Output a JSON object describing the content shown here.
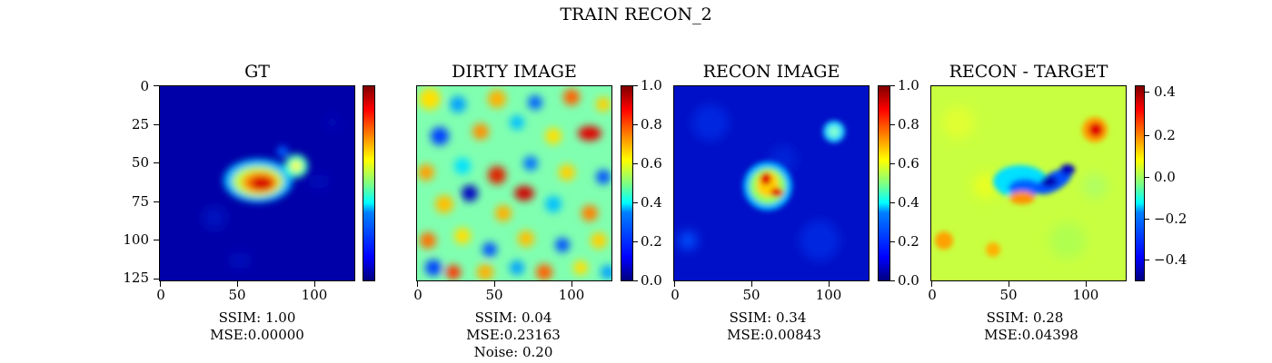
{
  "figure": {
    "suptitle": "TRAIN RECON_2"
  },
  "colors": {
    "colormap": "jet",
    "background": "#ffffff",
    "axes": "#000000"
  },
  "chart_data": [
    {
      "type": "heatmap",
      "title": "GT",
      "x_ticks": [
        "0",
        "50",
        "100"
      ],
      "y_ticks": [
        "0",
        "25",
        "50",
        "75",
        "100",
        "125"
      ],
      "xlim": [
        0,
        127
      ],
      "ylim": [
        127,
        0
      ],
      "colorbar": {
        "ticks": [],
        "range": [
          0,
          1
        ]
      },
      "caption": [
        "SSIM: 1.00",
        "MSE:0.00000"
      ],
      "metrics": {
        "ssim": 1.0,
        "mse": 0.0
      }
    },
    {
      "type": "heatmap",
      "title": "DIRTY IMAGE",
      "x_ticks": [
        "0",
        "50",
        "100"
      ],
      "xlim": [
        0,
        127
      ],
      "ylim": [
        127,
        0
      ],
      "colorbar": {
        "ticks": [
          "0.0",
          "0.2",
          "0.4",
          "0.6",
          "0.8",
          "1.0"
        ],
        "range": [
          0,
          1
        ]
      },
      "caption": [
        "SSIM: 0.04",
        "MSE:0.23163",
        "Noise: 0.20"
      ],
      "metrics": {
        "ssim": 0.04,
        "mse": 0.23163,
        "noise": 0.2
      }
    },
    {
      "type": "heatmap",
      "title": "RECON IMAGE",
      "x_ticks": [
        "0",
        "50",
        "100"
      ],
      "xlim": [
        0,
        127
      ],
      "ylim": [
        127,
        0
      ],
      "colorbar": {
        "ticks": [
          "0.0",
          "0.2",
          "0.4",
          "0.6",
          "0.8",
          "1.0"
        ],
        "range": [
          0,
          1
        ]
      },
      "caption": [
        "SSIM: 0.34",
        "MSE:0.00843"
      ],
      "metrics": {
        "ssim": 0.34,
        "mse": 0.00843
      }
    },
    {
      "type": "heatmap",
      "title": "RECON - TARGET",
      "x_ticks": [
        "0",
        "50",
        "100"
      ],
      "xlim": [
        0,
        127
      ],
      "ylim": [
        127,
        0
      ],
      "colorbar": {
        "ticks": [
          "0.4",
          "0.2",
          "0.0",
          "−0.2",
          "−0.4"
        ],
        "range": [
          -0.5,
          0.45
        ]
      },
      "caption": [
        "SSIM: 0.28",
        "MSE:0.04398"
      ],
      "metrics": {
        "ssim": 0.28,
        "mse": 0.04398
      }
    }
  ]
}
